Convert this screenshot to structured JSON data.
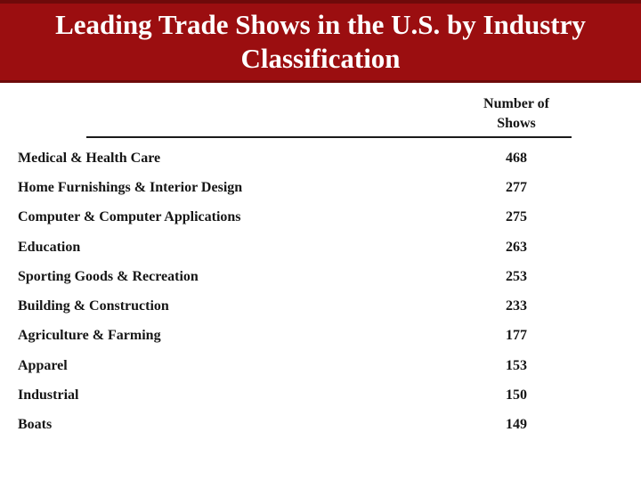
{
  "header": {
    "title_line1": "Leading Trade Shows in the U.S. by Industry",
    "title_line2": "Classification"
  },
  "table": {
    "value_header_line1": "Number of",
    "value_header_line2": "Shows",
    "rows": [
      {
        "label": "Medical & Health Care",
        "value": "468"
      },
      {
        "label": "Home Furnishings & Interior Design",
        "value": "277"
      },
      {
        "label": "Computer & Computer Applications",
        "value": "275"
      },
      {
        "label": "Education",
        "value": "263"
      },
      {
        "label": "Sporting Goods & Recreation",
        "value": "253"
      },
      {
        "label": "Building & Construction",
        "value": "233"
      },
      {
        "label": "Agriculture & Farming",
        "value": "177"
      },
      {
        "label": "Apparel",
        "value": "153"
      },
      {
        "label": "Industrial",
        "value": "150"
      },
      {
        "label": "Boats",
        "value": "149"
      }
    ]
  },
  "colors": {
    "header_background": "#9b0e10",
    "header_border": "#6e0a0a",
    "title_text": "#ffffff",
    "body_background": "#ffffff",
    "body_text": "#161616"
  }
}
